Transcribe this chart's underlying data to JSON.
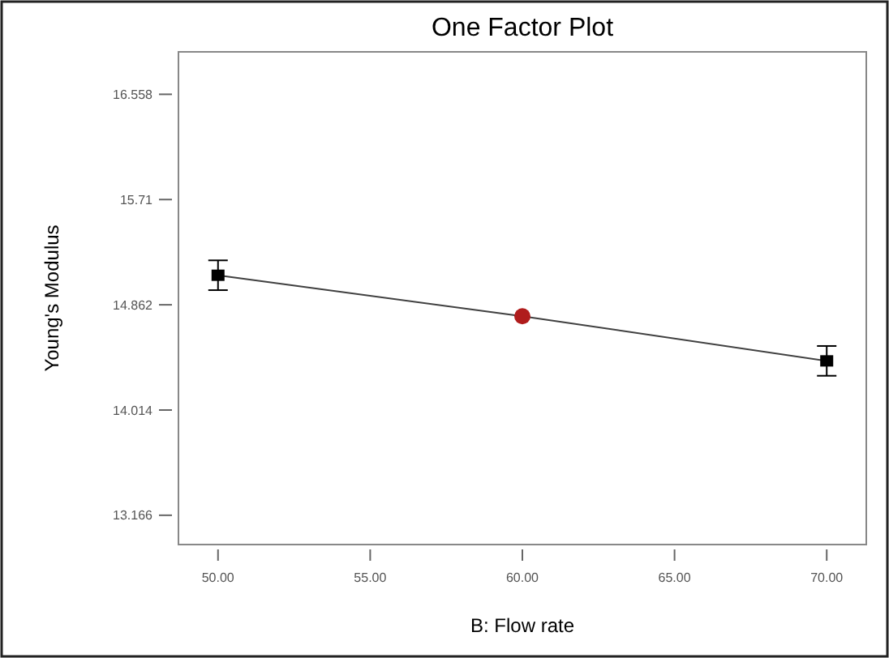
{
  "chart_data": {
    "type": "line",
    "title": "One Factor Plot",
    "xlabel": "B: Flow rate",
    "ylabel": "Young's Modulus",
    "xlim": [
      48.7,
      71.3
    ],
    "xticks": [
      {
        "value": 50,
        "label": "50.00"
      },
      {
        "value": 55,
        "label": "55.00"
      },
      {
        "value": 60,
        "label": "60.00"
      },
      {
        "value": 65,
        "label": "65.00"
      },
      {
        "value": 70,
        "label": "70.00"
      }
    ],
    "ylim": [
      12.93,
      16.9
    ],
    "yticks": [
      13.166,
      14.014,
      14.862,
      15.71,
      16.558
    ],
    "grid": false,
    "series": [
      {
        "color": "#404040",
        "x": [
          50,
          60,
          70
        ],
        "values": [
          15.1,
          14.77,
          14.41
        ],
        "marker": "none",
        "line_style": "solid"
      },
      {
        "type": "scatter",
        "color": "#000000",
        "x": [
          50,
          70
        ],
        "values": [
          15.1,
          14.41
        ],
        "errors": [
          0.12,
          0.12
        ],
        "marker": "square"
      },
      {
        "type": "scatter",
        "color": "#b01c1c",
        "x": [
          60
        ],
        "values": [
          14.77
        ],
        "marker": "circle"
      }
    ]
  }
}
